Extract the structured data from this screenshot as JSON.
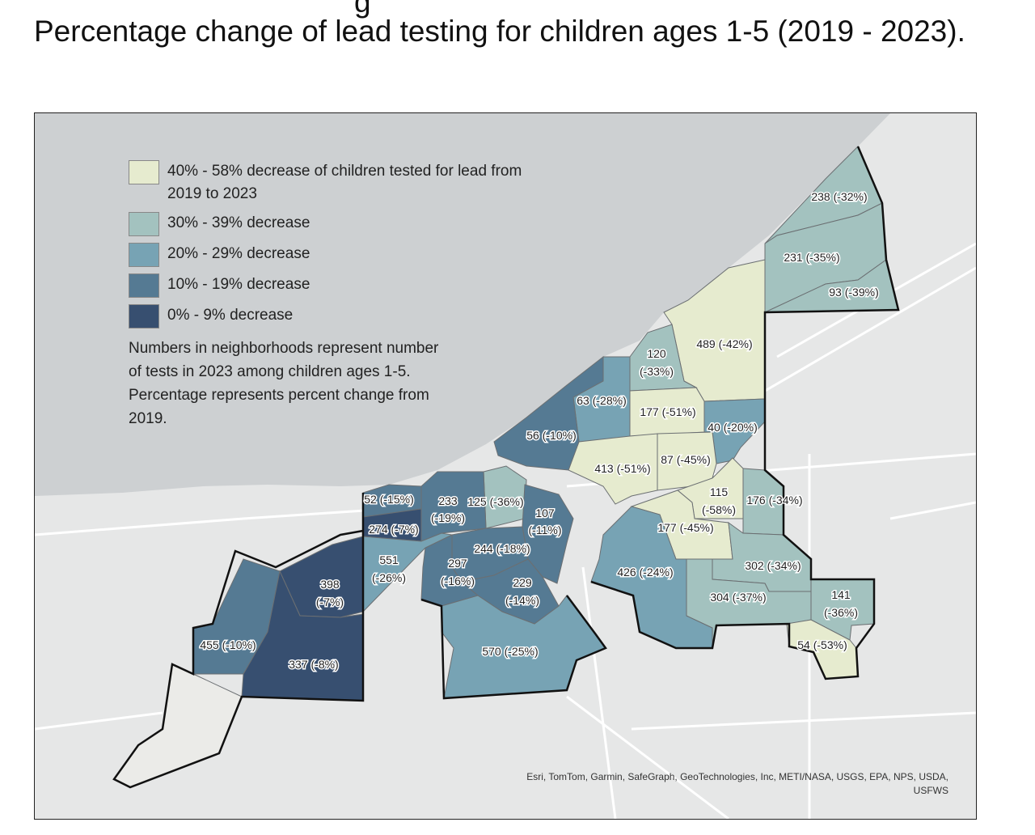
{
  "title": "Percentage change of lead testing for children ages 1-5 (2019 - 2023).",
  "title_partial_above": "g",
  "legend": [
    {
      "label": "40% - 58% decrease of children tested for lead from 2019 to 2023",
      "color": "#e6ebcf"
    },
    {
      "label": "30% - 39% decrease",
      "color": "#a3c2bf"
    },
    {
      "label": "20% - 29% decrease",
      "color": "#77a3b4"
    },
    {
      "label": "10% - 19% decrease",
      "color": "#557a93"
    },
    {
      "label": "0% - 9% decrease",
      "color": "#374f70"
    }
  ],
  "note": {
    "line1": "Numbers in neighborhoods represent number of tests in 2023 among children ages 1-5.",
    "line2": "Percentage represents percent change from 2019."
  },
  "attribution": "Esri, TomTom, Garmin, SafeGraph, GeoTechnologies, Inc, METI/NASA, USGS, EPA, NPS, USDA, USFWS",
  "neighborhoods": [
    {
      "tests": "238",
      "change": "(-32%)",
      "cls": 1
    },
    {
      "tests": "231",
      "change": "(-35%)",
      "cls": 1
    },
    {
      "tests": "93",
      "change": "(-39%)",
      "cls": 1
    },
    {
      "tests": "489",
      "change": "(-42%)",
      "cls": 0
    },
    {
      "tests": "120",
      "change": "(-33%)",
      "cls": 1
    },
    {
      "tests": "63",
      "change": "(-28%)",
      "cls": 2
    },
    {
      "tests": "177",
      "change": "(-51%)",
      "cls": 0
    },
    {
      "tests": "40",
      "change": "(-20%)",
      "cls": 2
    },
    {
      "tests": "413",
      "change": "(-51%)",
      "cls": 0
    },
    {
      "tests": "87",
      "change": "(-45%)",
      "cls": 0
    },
    {
      "tests": "115",
      "change": "(-58%)",
      "cls": 0
    },
    {
      "tests": "176",
      "change": "(-34%)",
      "cls": 1
    },
    {
      "tests": "177",
      "change": "(-45%)",
      "cls": 0
    },
    {
      "tests": "426",
      "change": "(-24%)",
      "cls": 2
    },
    {
      "tests": "302",
      "change": "(-34%)",
      "cls": 1
    },
    {
      "tests": "304",
      "change": "(-37%)",
      "cls": 1
    },
    {
      "tests": "141",
      "change": "(-36%)",
      "cls": 1
    },
    {
      "tests": "54",
      "change": "(-53%)",
      "cls": 0
    },
    {
      "tests": "56",
      "change": "(-10%)",
      "cls": 3
    },
    {
      "tests": "125",
      "change": "(-36%)",
      "cls": 1
    },
    {
      "tests": "233",
      "change": "(-19%)",
      "cls": 3
    },
    {
      "tests": "107",
      "change": "(-11%)",
      "cls": 3
    },
    {
      "tests": "244",
      "change": "(-18%)",
      "cls": 3
    },
    {
      "tests": "297",
      "change": "(-16%)",
      "cls": 3
    },
    {
      "tests": "229",
      "change": "(-14%)",
      "cls": 3
    },
    {
      "tests": "570",
      "change": "(-25%)",
      "cls": 2
    },
    {
      "tests": "52",
      "change": "(-15%)",
      "cls": 3
    },
    {
      "tests": "274",
      "change": "(-7%)",
      "cls": 4
    },
    {
      "tests": "551",
      "change": "(-26%)",
      "cls": 2
    },
    {
      "tests": "398",
      "change": "(-7%)",
      "cls": 4
    },
    {
      "tests": "455",
      "change": "(-10%)",
      "cls": 3
    },
    {
      "tests": "337",
      "change": "(-8%)",
      "cls": 4
    }
  ]
}
